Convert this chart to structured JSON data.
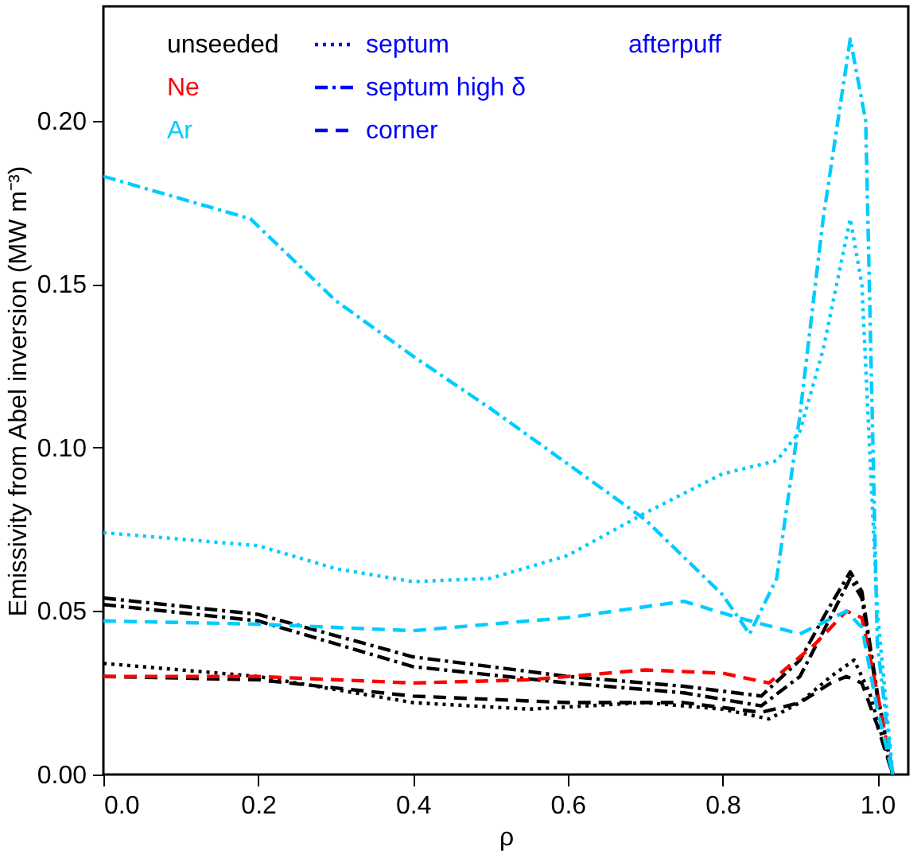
{
  "chart_data": {
    "type": "line",
    "xlabel": "ρ",
    "ylabel": "Emissivity from Abel inversion (MW m⁻³)",
    "xlim": [
      0,
      1.04
    ],
    "ylim": [
      0,
      0.235
    ],
    "xticks": [
      {
        "value": 0,
        "label": "0.0"
      },
      {
        "value": 0.2,
        "label": "0.2"
      },
      {
        "value": 0.4,
        "label": "0.4"
      },
      {
        "value": 0.6,
        "label": "0.6"
      },
      {
        "value": 0.8,
        "label": "0.8"
      },
      {
        "value": 1,
        "label": "1.0"
      }
    ],
    "yticks": [
      {
        "value": 0,
        "label": "0.00"
      },
      {
        "value": 0.05,
        "label": "0.05"
      },
      {
        "value": 0.1,
        "label": "0.10"
      },
      {
        "value": 0.15,
        "label": "0.15"
      },
      {
        "value": 0.2,
        "label": "0.20"
      }
    ],
    "grid": false,
    "annotations": [
      "unseeded",
      "Ne",
      "Ar",
      "septum",
      "septum high δ",
      "corner",
      "afterpuff"
    ],
    "series": [
      {
        "color": "#000000",
        "line_style": "dotted",
        "x": [
          0,
          0.2,
          0.4,
          0.55,
          0.7,
          0.8,
          0.86,
          0.9,
          0.94,
          0.97,
          0.99,
          1.02
        ],
        "values": [
          0.034,
          0.03,
          0.022,
          0.02,
          0.022,
          0.02,
          0.017,
          0.022,
          0.03,
          0.035,
          0.025,
          0
        ]
      },
      {
        "color": "#000000",
        "line_style": "dashdot",
        "x": [
          0,
          0.2,
          0.4,
          0.6,
          0.75,
          0.85,
          0.9,
          0.935,
          0.965,
          0.98,
          1.0,
          1.02
        ],
        "values": [
          0.054,
          0.049,
          0.036,
          0.03,
          0.027,
          0.024,
          0.035,
          0.05,
          0.062,
          0.056,
          0.025,
          0
        ]
      },
      {
        "color": "#000000",
        "line_style": "dashdot",
        "x": [
          0,
          0.2,
          0.4,
          0.6,
          0.75,
          0.85,
          0.9,
          0.935,
          0.965,
          0.98,
          1.0,
          1.02
        ],
        "values": [
          0.052,
          0.047,
          0.033,
          0.028,
          0.025,
          0.021,
          0.03,
          0.046,
          0.06,
          0.054,
          0.024,
          0
        ]
      },
      {
        "color": "#000000",
        "line_style": "dashed",
        "x": [
          0,
          0.2,
          0.4,
          0.6,
          0.75,
          0.85,
          0.9,
          0.94,
          0.96,
          0.98,
          1.0,
          1.02
        ],
        "values": [
          0.03,
          0.029,
          0.024,
          0.022,
          0.022,
          0.019,
          0.022,
          0.028,
          0.03,
          0.028,
          0.015,
          0
        ]
      },
      {
        "color": "#ff0000",
        "line_style": "dashed",
        "x": [
          0,
          0.2,
          0.4,
          0.55,
          0.7,
          0.8,
          0.86,
          0.92,
          0.96,
          0.98,
          1.0,
          1.02
        ],
        "values": [
          0.03,
          0.03,
          0.028,
          0.029,
          0.032,
          0.031,
          0.028,
          0.04,
          0.05,
          0.048,
          0.025,
          0
        ]
      },
      {
        "color": "#00ccff",
        "line_style": "dotted",
        "x": [
          0,
          0.2,
          0.3,
          0.4,
          0.5,
          0.6,
          0.7,
          0.8,
          0.87,
          0.9,
          0.93,
          0.965,
          0.98,
          1.0,
          1.02
        ],
        "values": [
          0.074,
          0.07,
          0.063,
          0.059,
          0.06,
          0.067,
          0.08,
          0.092,
          0.096,
          0.105,
          0.13,
          0.17,
          0.15,
          0.05,
          0
        ]
      },
      {
        "color": "#00ccff",
        "line_style": "dashdot",
        "x": [
          0,
          0.19,
          0.3,
          0.4,
          0.5,
          0.6,
          0.7,
          0.8,
          0.835,
          0.87,
          0.9,
          0.93,
          0.965,
          0.985,
          1.0,
          1.02
        ],
        "values": [
          0.183,
          0.17,
          0.145,
          0.128,
          0.112,
          0.095,
          0.078,
          0.055,
          0.043,
          0.06,
          0.11,
          0.17,
          0.225,
          0.2,
          0.04,
          0
        ]
      },
      {
        "color": "#00ccff",
        "line_style": "dashed",
        "x": [
          0,
          0.2,
          0.4,
          0.6,
          0.75,
          0.82,
          0.9,
          0.96,
          0.98,
          1.0,
          1.02
        ],
        "values": [
          0.047,
          0.046,
          0.044,
          0.048,
          0.053,
          0.048,
          0.043,
          0.05,
          0.045,
          0.02,
          0
        ]
      }
    ]
  }
}
